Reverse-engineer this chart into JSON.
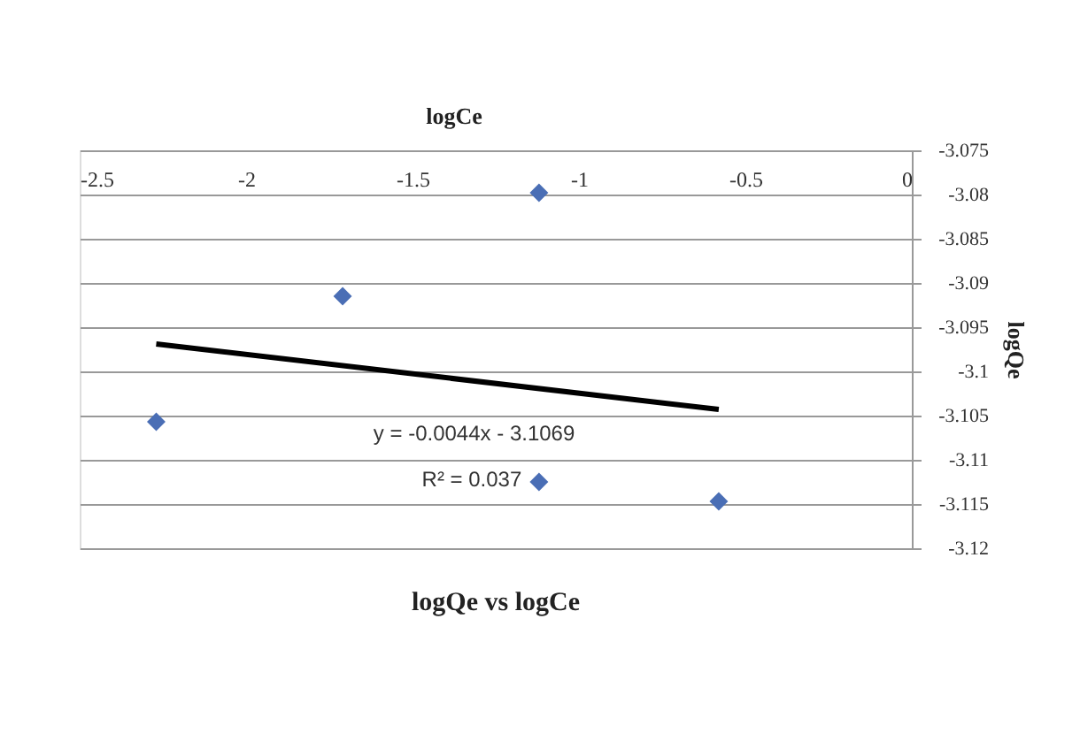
{
  "chart_data": {
    "type": "scatter",
    "title": "logQe vs logCe",
    "xlabel": "logCe",
    "ylabel": "logQe",
    "series": [
      {
        "type": "scatter",
        "color": "#4a6eb5",
        "marker": "diamond",
        "x": [
          -2.27,
          -1.71,
          -1.12,
          -1.12,
          -0.58
        ],
        "values": [
          -3.1057,
          -3.0915,
          -3.0798,
          -3.1125,
          -3.1147
        ]
      },
      {
        "type": "line",
        "color": "#000000",
        "marker": "none",
        "x": [
          -2.27,
          -0.58
        ],
        "values": [
          -3.0969,
          -3.1043
        ]
      }
    ],
    "xlim": [
      -2.5,
      0
    ],
    "xticks": [
      -2.5,
      -2,
      -1.5,
      -1,
      -0.5,
      0
    ],
    "ylim": [
      -3.12,
      -3.075
    ],
    "yticks": [
      -3.12,
      -3.115,
      -3.11,
      -3.105,
      -3.1,
      -3.095,
      -3.09,
      -3.085,
      -3.08,
      -3.075
    ],
    "grid": "y",
    "annotations": [
      "y = -0.0044x - 3.1069",
      "R² = 0.037"
    ]
  }
}
